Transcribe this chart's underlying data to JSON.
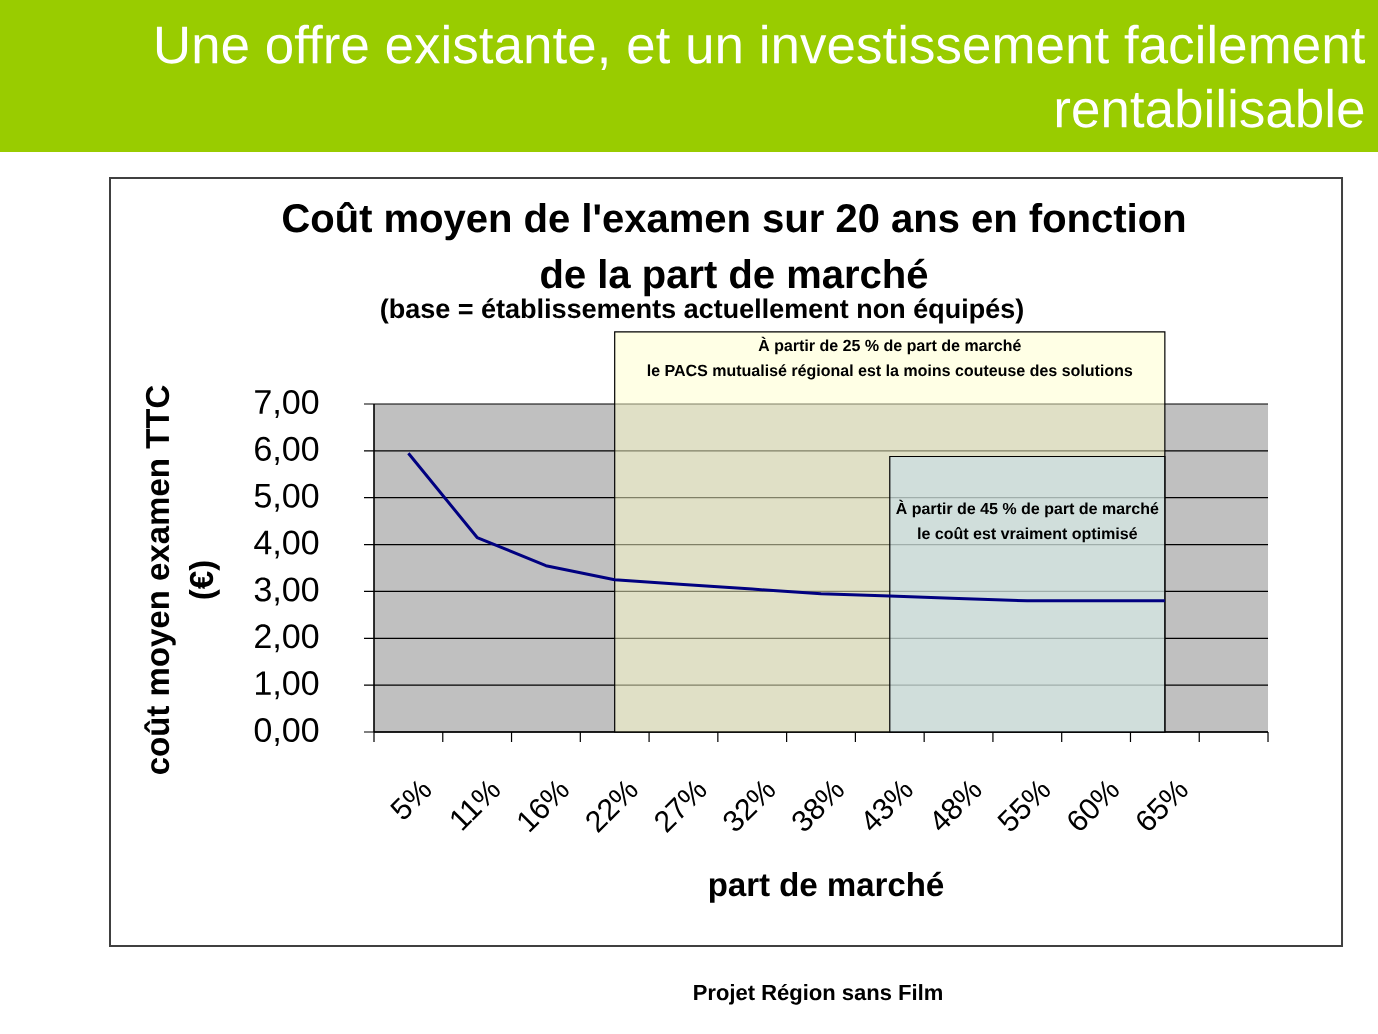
{
  "chart_data": {
    "type": "line",
    "title": "Coût moyen de l'examen sur 20 ans en fonction de la part de marché",
    "subtitle": "(base = établissements actuellement non équipés)",
    "xlabel": "part de marché",
    "ylabel": "coût moyen examen TTC (€)",
    "categories": [
      "5%",
      "11%",
      "16%",
      "22%",
      "27%",
      "32%",
      "38%",
      "43%",
      "48%",
      "55%",
      "60%",
      "65%",
      null
    ],
    "values": [
      5.95,
      4.15,
      3.55,
      3.25,
      3.15,
      3.05,
      2.95,
      2.9,
      2.85,
      2.8,
      2.8,
      2.8,
      null
    ],
    "color": "#000080",
    "ylim": [
      0,
      7
    ],
    "yticks": [
      {
        "value": 0,
        "label": "0,00"
      },
      {
        "value": 1,
        "label": "1,00"
      },
      {
        "value": 2,
        "label": "2,00"
      },
      {
        "value": 3,
        "label": "3,00"
      },
      {
        "value": 4,
        "label": "4,00"
      },
      {
        "value": 5,
        "label": "5,00"
      },
      {
        "value": 6,
        "label": "6,00"
      },
      {
        "value": 7,
        "label": "7,00"
      }
    ],
    "grid": "y",
    "bands": [
      {
        "axis": "x",
        "from": "22%",
        "to": "65%",
        "label": "À partir de 25 % de part de marché le PACS mutualisé régional est la moins couteuse des solutions",
        "color": "#ffffcc"
      },
      {
        "axis": "x",
        "from": "43%",
        "to": "65%",
        "label": "À partir de 45 % de part de marché le coût est vraiment optimisé",
        "color": "#bfdbf0"
      }
    ],
    "annotations": [
      "Une offre existante, et un investissement facilement rentabilisable",
      "Projet Région sans Film"
    ]
  }
}
